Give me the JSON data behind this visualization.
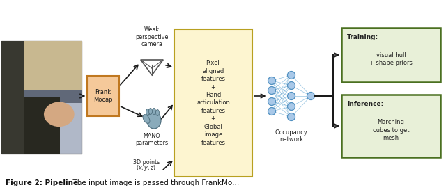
{
  "bg_color": "#ffffff",
  "frank_box_color": "#f5c99a",
  "frank_box_edge": "#c07820",
  "features_box_color": "#fdf5d0",
  "features_box_edge": "#b8a020",
  "training_box_color": "#e8f0d8",
  "training_box_edge": "#4a7020",
  "inference_box_color": "#e8f0d8",
  "inference_box_edge": "#4a7020",
  "arrow_color": "#1a1a1a",
  "network_node_color": "#a8c8e8",
  "network_edge_color": "#6aaad4",
  "text_color": "#222222",
  "caption_bold": "Figure 2: Pipeline.",
  "caption_rest": "  The input image is passed through FrankMo...",
  "frank_label": "Frank\nMocap",
  "weak_persp_label": "Weak\nperspective\ncamera",
  "mano_label": "MANO\nparameters",
  "points_label": "3D points",
  "points_label2": "$(x,y,z)$",
  "features_label": "Pixel-\naligned\nfeatures\n+\nHand\narticulation\nfeatures\n+\nGlobal\nimage\nfeatures",
  "occupancy_label": "Occupancy\nnetwork",
  "training_title": "Training:",
  "training_text": "visual hull\n+ shape priors",
  "inference_title": "Inference:",
  "inference_text": "Marching\ncubes to get\nmesh",
  "cam_color": "#555555",
  "hand_color": "#8aabbb",
  "hand_edge": "#507080"
}
